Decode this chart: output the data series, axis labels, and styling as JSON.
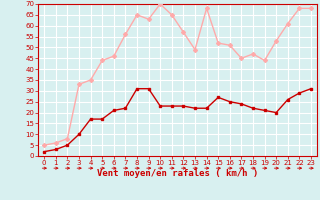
{
  "x": [
    0,
    1,
    2,
    3,
    4,
    5,
    6,
    7,
    8,
    9,
    10,
    11,
    12,
    13,
    14,
    15,
    16,
    17,
    18,
    19,
    20,
    21,
    22,
    23
  ],
  "wind_avg": [
    2,
    3,
    5,
    10,
    17,
    17,
    21,
    22,
    31,
    31,
    23,
    23,
    23,
    22,
    22,
    27,
    25,
    24,
    22,
    21,
    20,
    26,
    29,
    31
  ],
  "wind_gust": [
    5,
    6,
    8,
    33,
    35,
    44,
    46,
    56,
    65,
    63,
    70,
    65,
    57,
    49,
    68,
    52,
    51,
    45,
    47,
    44,
    53,
    61,
    68,
    68
  ],
  "color_avg": "#cc0000",
  "color_gust": "#ffaaaa",
  "bg_color": "#d8f0f0",
  "grid_color": "#ffffff",
  "xlabel": "Vent moyen/en rafales ( km/h )",
  "xlabel_color": "#cc0000",
  "tick_color": "#cc0000",
  "ylim": [
    0,
    70
  ],
  "yticks": [
    0,
    5,
    10,
    15,
    20,
    25,
    30,
    35,
    40,
    45,
    50,
    55,
    60,
    65,
    70
  ],
  "xticks": [
    0,
    1,
    2,
    3,
    4,
    5,
    6,
    7,
    8,
    9,
    10,
    11,
    12,
    13,
    14,
    15,
    16,
    17,
    18,
    19,
    20,
    21,
    22,
    23
  ]
}
